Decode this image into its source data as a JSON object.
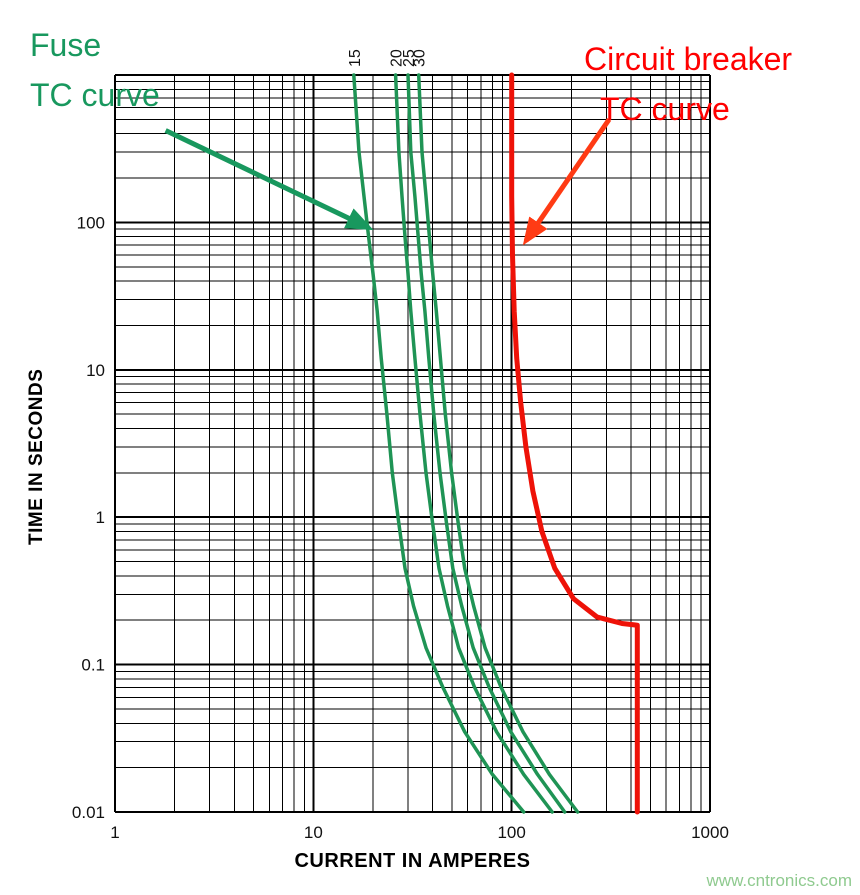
{
  "page": {
    "background": "#ffffff",
    "watermark": "www.cntronics.com",
    "watermark_color": "#8fca8f"
  },
  "annotations": {
    "fuse": {
      "line1": "Fuse",
      "line2": "TC curve",
      "color": "#18985e"
    },
    "breaker": {
      "line1": "Circuit breaker",
      "line2": "TC curve",
      "color": "#ff0000"
    }
  },
  "chart_data": {
    "type": "line",
    "title": "",
    "xlabel": "CURRENT IN AMPERES",
    "ylabel": "TIME IN SECONDS",
    "x_scale": "log",
    "y_scale": "log",
    "xlim": [
      1,
      1000
    ],
    "ylim": [
      0.01,
      1000
    ],
    "grid": "log major+minor, black, full plot",
    "x_ticks": [
      {
        "value": 1,
        "label": "1"
      },
      {
        "value": 10,
        "label": "10"
      },
      {
        "value": 100,
        "label": "100"
      },
      {
        "value": 1000,
        "label": "1000"
      }
    ],
    "y_ticks": [
      {
        "value": 100,
        "label": "100"
      },
      {
        "value": 10,
        "label": "10"
      },
      {
        "value": 1,
        "label": "1"
      },
      {
        "value": 0.1,
        "label": "0.1"
      },
      {
        "value": 0.01,
        "label": "0.01"
      }
    ],
    "series": [
      {
        "name": "Fuse 15 A",
        "label": "15",
        "color": "#1f9455",
        "width": 3.5,
        "points": [
          [
            16,
            1000
          ],
          [
            17,
            300
          ],
          [
            18,
            150
          ],
          [
            19,
            80
          ],
          [
            20,
            45
          ],
          [
            21,
            25
          ],
          [
            22,
            12
          ],
          [
            23.5,
            5
          ],
          [
            25,
            2
          ],
          [
            27,
            0.9
          ],
          [
            29,
            0.45
          ],
          [
            32,
            0.25
          ],
          [
            37,
            0.13
          ],
          [
            45,
            0.07
          ],
          [
            58,
            0.035
          ],
          [
            80,
            0.018
          ],
          [
            115,
            0.01
          ]
        ]
      },
      {
        "name": "Fuse 20 A",
        "label": "20",
        "color": "#1f9455",
        "width": 3.5,
        "points": [
          [
            26,
            1000
          ],
          [
            27,
            300
          ],
          [
            28,
            150
          ],
          [
            29,
            80
          ],
          [
            30,
            45
          ],
          [
            31,
            25
          ],
          [
            32.5,
            12
          ],
          [
            34.5,
            5
          ],
          [
            37,
            2
          ],
          [
            40,
            0.9
          ],
          [
            43,
            0.45
          ],
          [
            47.5,
            0.25
          ],
          [
            54,
            0.13
          ],
          [
            65,
            0.07
          ],
          [
            84,
            0.035
          ],
          [
            115,
            0.018
          ],
          [
            160,
            0.01
          ]
        ]
      },
      {
        "name": "Fuse 25 A",
        "label": "25",
        "color": "#1f9455",
        "width": 3.5,
        "points": [
          [
            30,
            1000
          ],
          [
            31,
            300
          ],
          [
            32.5,
            150
          ],
          [
            33.8,
            80
          ],
          [
            35,
            45
          ],
          [
            36.5,
            25
          ],
          [
            38.2,
            12
          ],
          [
            40.5,
            5
          ],
          [
            43.5,
            2
          ],
          [
            47,
            0.9
          ],
          [
            50.5,
            0.45
          ],
          [
            56,
            0.25
          ],
          [
            64,
            0.13
          ],
          [
            77,
            0.07
          ],
          [
            99,
            0.035
          ],
          [
            135,
            0.018
          ],
          [
            185,
            0.01
          ]
        ]
      },
      {
        "name": "Fuse 30 A",
        "label": "30",
        "color": "#1f9455",
        "width": 3.5,
        "points": [
          [
            34,
            1000
          ],
          [
            35.3,
            300
          ],
          [
            37,
            150
          ],
          [
            38.5,
            80
          ],
          [
            40,
            45
          ],
          [
            41.7,
            25
          ],
          [
            43.7,
            12
          ],
          [
            46.3,
            5
          ],
          [
            49.8,
            2
          ],
          [
            53.8,
            0.9
          ],
          [
            58,
            0.45
          ],
          [
            64.3,
            0.25
          ],
          [
            73.5,
            0.13
          ],
          [
            88.5,
            0.07
          ],
          [
            114,
            0.035
          ],
          [
            155,
            0.018
          ],
          [
            215,
            0.01
          ]
        ]
      },
      {
        "name": "Circuit breaker",
        "label": "",
        "color": "#ee1208",
        "width": 5,
        "points": [
          [
            100,
            1000
          ],
          [
            100,
            150
          ],
          [
            101,
            60
          ],
          [
            103,
            25
          ],
          [
            106,
            12
          ],
          [
            111,
            6
          ],
          [
            118,
            3
          ],
          [
            128,
            1.5
          ],
          [
            142,
            0.8
          ],
          [
            165,
            0.45
          ],
          [
            205,
            0.28
          ],
          [
            270,
            0.21
          ],
          [
            360,
            0.19
          ],
          [
            430,
            0.185
          ],
          [
            430,
            0.01
          ]
        ]
      }
    ],
    "arrows": [
      {
        "name": "fuse-arrow",
        "color": "#18985e",
        "from": [
          1.8,
          420
        ],
        "to": [
          19,
          92
        ]
      },
      {
        "name": "breaker-arrow",
        "color": "#ff3b14",
        "from": [
          310,
          500
        ],
        "to": [
          118,
          75
        ]
      }
    ]
  }
}
